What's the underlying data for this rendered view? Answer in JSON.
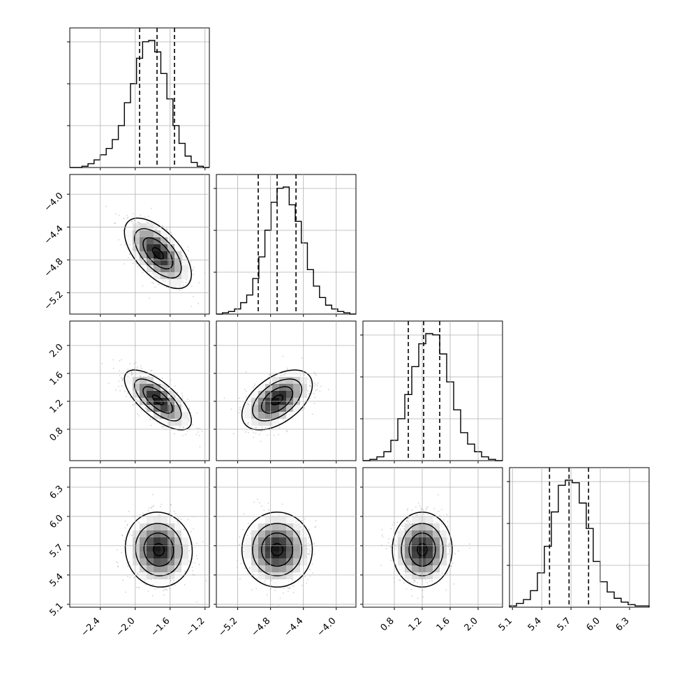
{
  "colors": {
    "background": "#ffffff",
    "line": "#000000",
    "grid": "#b0b0b0",
    "points": "#7f7f7f",
    "density_low": "#ffffff",
    "density_high": "#000000"
  },
  "chart_data": {
    "type": "corner",
    "grid": true,
    "quantiles": [
      0.16,
      0.5,
      0.84
    ],
    "params": [
      {
        "ticks": [
          "-2.4",
          "-2.0",
          "-1.6",
          "-1.2"
        ],
        "tick_values": [
          -2.4,
          -2.0,
          -1.6,
          -1.2
        ],
        "range": [
          -2.75,
          -1.15
        ],
        "quantile_values": [
          -1.95,
          -1.75,
          -1.55
        ]
      },
      {
        "ticks": [
          "-5.2",
          "-4.8",
          "-4.4",
          "-4.0"
        ],
        "tick_values": [
          -5.2,
          -4.8,
          -4.4,
          -4.0
        ],
        "range": [
          -5.46,
          -3.76
        ],
        "quantile_values": [
          -4.95,
          -4.72,
          -4.49
        ]
      },
      {
        "ticks": [
          "0.8",
          "1.2",
          "1.6",
          "2.0"
        ],
        "tick_values": [
          0.8,
          1.2,
          1.6,
          2.0
        ],
        "range": [
          0.35,
          2.35
        ],
        "quantile_values": [
          1.0,
          1.22,
          1.45
        ]
      },
      {
        "ticks": [
          "5.1",
          "5.4",
          "5.7",
          "6.0",
          "6.3"
        ],
        "tick_values": [
          5.1,
          5.4,
          5.7,
          6.0,
          6.3
        ],
        "range": [
          5.07,
          6.5
        ],
        "quantile_values": [
          5.48,
          5.68,
          5.88
        ]
      }
    ],
    "histograms": [
      {
        "param": 0,
        "counts": [
          0,
          0,
          1,
          3,
          6,
          10,
          15,
          22,
          33,
          51,
          66,
          86,
          99,
          100,
          91,
          74,
          54,
          33,
          19,
          9,
          4,
          1,
          0
        ]
      },
      {
        "param": 1,
        "counts": [
          0,
          1,
          2,
          4,
          9,
          15,
          28,
          45,
          66,
          88,
          99,
          100,
          86,
          73,
          56,
          35,
          22,
          13,
          7,
          4,
          2,
          1,
          0
        ]
      },
      {
        "param": 2,
        "counts": [
          0,
          1,
          3,
          7,
          16,
          33,
          52,
          74,
          92,
          100,
          99,
          84,
          62,
          40,
          22,
          13,
          7,
          3,
          1,
          0
        ]
      },
      {
        "param": 3,
        "counts": [
          1,
          3,
          6,
          13,
          27,
          48,
          75,
          96,
          100,
          98,
          82,
          62,
          36,
          20,
          12,
          7,
          4,
          2,
          1,
          1
        ]
      }
    ],
    "pairs": [
      {
        "x": 0,
        "y": 1,
        "center": [
          -1.74,
          -4.72
        ],
        "sd": [
          0.17,
          0.19
        ],
        "corr": -0.6
      },
      {
        "x": 0,
        "y": 2,
        "center": [
          -1.74,
          1.22
        ],
        "sd": [
          0.17,
          0.19
        ],
        "corr": -0.7
      },
      {
        "x": 1,
        "y": 2,
        "center": [
          -4.72,
          1.22
        ],
        "sd": [
          0.19,
          0.19
        ],
        "corr": 0.5
      },
      {
        "x": 0,
        "y": 3,
        "center": [
          -1.73,
          5.66
        ],
        "sd": [
          0.17,
          0.17
        ],
        "corr": -0.05
      },
      {
        "x": 1,
        "y": 3,
        "center": [
          -4.72,
          5.66
        ],
        "sd": [
          0.19,
          0.17
        ],
        "corr": 0.0
      },
      {
        "x": 2,
        "y": 3,
        "center": [
          1.2,
          5.66
        ],
        "sd": [
          0.19,
          0.17
        ],
        "corr": 0.0
      }
    ]
  }
}
